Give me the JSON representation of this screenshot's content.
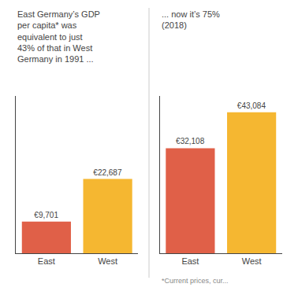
{
  "chart_data": [
    {
      "type": "bar",
      "categories": [
        "East",
        "West"
      ],
      "values": [
        9701,
        22687
      ],
      "value_labels": [
        "€9,701",
        "€22,687"
      ],
      "data_labels": true,
      "colors": [
        "#e06048",
        "#f5b731"
      ],
      "ylim": [
        0,
        48000
      ],
      "tick_labels": "x",
      "grid": false,
      "annotations": [
        "East Germany’s GDP\nper capita* was\nequivalent to just\n43% of that in West\nGermany in 1991 ..."
      ]
    },
    {
      "type": "bar",
      "categories": [
        "East",
        "West"
      ],
      "values": [
        32108,
        43084
      ],
      "value_labels": [
        "€32,108",
        "€43,084"
      ],
      "data_labels": true,
      "colors": [
        "#e06048",
        "#f5b731"
      ],
      "ylim": [
        0,
        48000
      ],
      "tick_labels": "x",
      "grid": false,
      "annotations": [
        "... now it’s 75%\n(2018)",
        "*Current prices, cur..."
      ]
    }
  ]
}
